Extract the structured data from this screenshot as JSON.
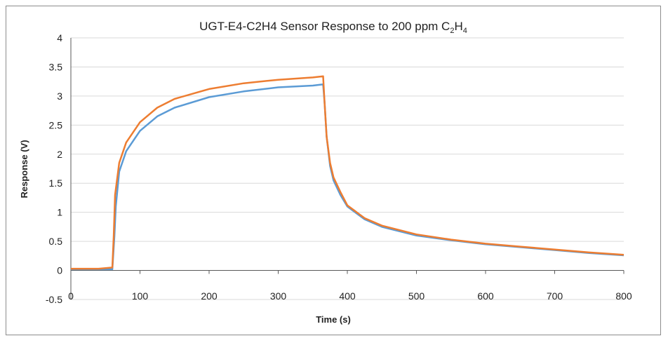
{
  "chart_data": {
    "type": "line",
    "title_main": "UGT-E4-C2H4  Sensor Response to 200  ppm C",
    "title_sub1": "2",
    "title_mid": "H",
    "title_sub2": "4",
    "xlabel": "Time (s)",
    "ylabel": "Response (V)",
    "xlim": [
      0,
      800
    ],
    "ylim": [
      -0.5,
      4
    ],
    "xticks": [
      "0",
      "100",
      "200",
      "300",
      "400",
      "500",
      "600",
      "700",
      "800"
    ],
    "yticks": [
      "-0.5",
      "0",
      "0.5",
      "1",
      "1.5",
      "2",
      "2.5",
      "3",
      "3.5",
      "4"
    ],
    "grid": "horizontal",
    "legend": "none",
    "series": [
      {
        "color": "#5b9bd5",
        "x": [
          0,
          20,
          40,
          60,
          63,
          65,
          70,
          80,
          100,
          125,
          150,
          200,
          250,
          300,
          350,
          365,
          367,
          370,
          375,
          380,
          390,
          400,
          425,
          450,
          500,
          550,
          600,
          650,
          700,
          750,
          800
        ],
        "y": [
          0.02,
          0.02,
          0.02,
          0.02,
          0.6,
          1.1,
          1.7,
          2.05,
          2.4,
          2.65,
          2.8,
          2.98,
          3.08,
          3.15,
          3.18,
          3.2,
          2.9,
          2.3,
          1.8,
          1.55,
          1.3,
          1.1,
          0.88,
          0.75,
          0.6,
          0.52,
          0.45,
          0.4,
          0.35,
          0.3,
          0.26
        ]
      },
      {
        "color": "#ed7d31",
        "x": [
          0,
          20,
          40,
          60,
          62,
          64,
          70,
          80,
          100,
          125,
          150,
          200,
          250,
          300,
          350,
          365,
          367,
          370,
          375,
          380,
          390,
          400,
          425,
          450,
          500,
          550,
          600,
          650,
          700,
          750,
          800
        ],
        "y": [
          0.03,
          0.03,
          0.03,
          0.05,
          0.6,
          1.3,
          1.85,
          2.2,
          2.55,
          2.8,
          2.95,
          3.12,
          3.22,
          3.28,
          3.32,
          3.34,
          2.9,
          2.3,
          1.85,
          1.6,
          1.35,
          1.12,
          0.9,
          0.77,
          0.62,
          0.53,
          0.46,
          0.41,
          0.36,
          0.31,
          0.27
        ]
      }
    ]
  }
}
